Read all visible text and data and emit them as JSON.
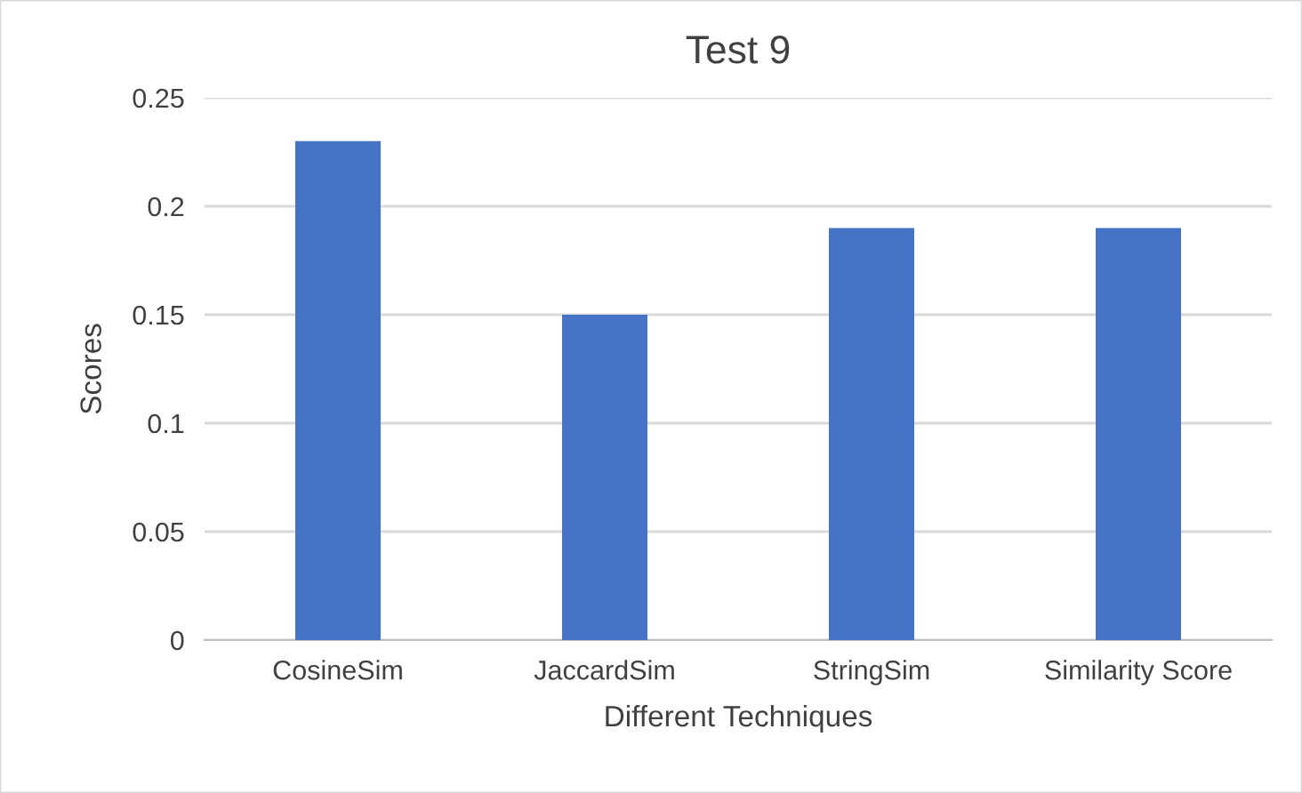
{
  "chart_data": {
    "type": "bar",
    "title": "Test 9",
    "xlabel": "Different Techniques",
    "ylabel": "Scores",
    "categories": [
      "CosineSim",
      "JaccardSim",
      "StringSim",
      "Similarity Score"
    ],
    "values": [
      0.23,
      0.15,
      0.19,
      0.19
    ],
    "color": "#4472c4",
    "ylim": [
      0,
      0.25
    ],
    "yticks": [
      0,
      0.05,
      0.1,
      0.15,
      0.2,
      0.25
    ],
    "grid": "y",
    "legend": false
  }
}
